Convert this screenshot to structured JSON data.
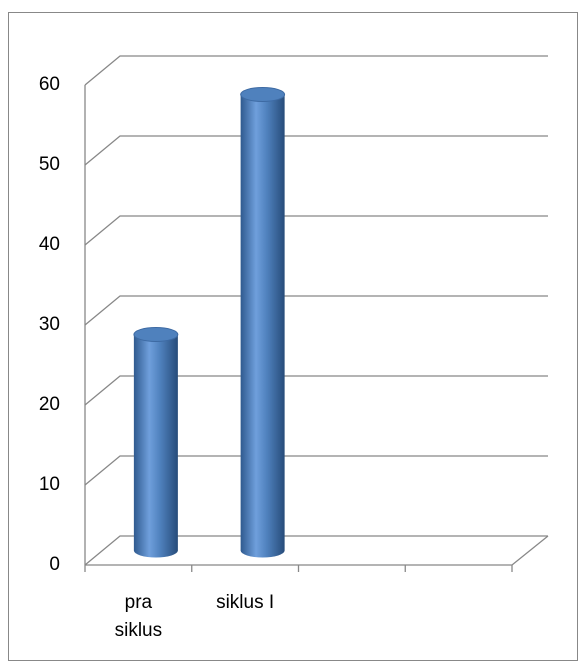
{
  "chart_data": {
    "type": "bar3d-cylinder",
    "categories": [
      "pra siklus",
      "siklus I",
      null,
      null
    ],
    "values": [
      27,
      57,
      null,
      null
    ],
    "color": "#4f81bd",
    "ylim": [
      0,
      60
    ],
    "yticks": [
      0,
      10,
      20,
      30,
      40,
      50,
      60
    ],
    "grid": true
  }
}
